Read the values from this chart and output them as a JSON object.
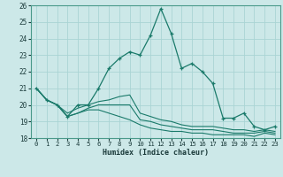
{
  "xlabel": "Humidex (Indice chaleur)",
  "bg_color": "#cce8e8",
  "grid_color": "#aad4d4",
  "line_color": "#1a7a6a",
  "xlim": [
    -0.5,
    23.5
  ],
  "ylim": [
    18,
    26
  ],
  "xticks": [
    0,
    1,
    2,
    3,
    4,
    5,
    6,
    7,
    8,
    9,
    10,
    11,
    12,
    13,
    14,
    15,
    16,
    17,
    18,
    19,
    20,
    21,
    22,
    23
  ],
  "yticks": [
    18,
    19,
    20,
    21,
    22,
    23,
    24,
    25,
    26
  ],
  "series": [
    {
      "x": [
        0,
        1,
        2,
        3,
        4,
        5,
        6,
        7,
        8,
        9,
        10,
        11,
        12,
        13,
        14,
        15,
        16,
        17,
        18,
        19,
        20,
        21,
        22,
        23
      ],
      "y": [
        21.0,
        20.3,
        20.0,
        19.3,
        20.0,
        20.0,
        21.0,
        22.2,
        22.8,
        23.2,
        23.0,
        24.2,
        25.8,
        24.3,
        22.2,
        22.5,
        22.0,
        21.3,
        19.2,
        19.2,
        19.5,
        18.7,
        18.5,
        18.7
      ],
      "marker": "+"
    },
    {
      "x": [
        0,
        1,
        2,
        3,
        4,
        5,
        6,
        7,
        8,
        9,
        10,
        11,
        12,
        13,
        14,
        15,
        16,
        17,
        18,
        19,
        20,
        21,
        22,
        23
      ],
      "y": [
        21.0,
        20.3,
        20.0,
        19.5,
        19.8,
        20.0,
        20.2,
        20.3,
        20.5,
        20.6,
        19.5,
        19.3,
        19.1,
        19.0,
        18.8,
        18.7,
        18.7,
        18.7,
        18.6,
        18.5,
        18.5,
        18.4,
        18.5,
        18.4
      ],
      "marker": null
    },
    {
      "x": [
        0,
        1,
        2,
        3,
        4,
        5,
        6,
        7,
        8,
        9,
        10,
        11,
        12,
        13,
        14,
        15,
        16,
        17,
        18,
        19,
        20,
        21,
        22,
        23
      ],
      "y": [
        21.0,
        20.3,
        20.0,
        19.3,
        19.5,
        19.8,
        20.0,
        20.0,
        20.0,
        20.0,
        19.1,
        19.0,
        18.8,
        18.7,
        18.6,
        18.5,
        18.5,
        18.5,
        18.4,
        18.3,
        18.3,
        18.3,
        18.4,
        18.3
      ],
      "marker": null
    },
    {
      "x": [
        0,
        1,
        2,
        3,
        4,
        5,
        6,
        7,
        8,
        9,
        10,
        11,
        12,
        13,
        14,
        15,
        16,
        17,
        18,
        19,
        20,
        21,
        22,
        23
      ],
      "y": [
        21.0,
        20.3,
        20.0,
        19.3,
        19.5,
        19.7,
        19.7,
        19.5,
        19.3,
        19.1,
        18.8,
        18.6,
        18.5,
        18.4,
        18.4,
        18.3,
        18.3,
        18.2,
        18.2,
        18.2,
        18.2,
        18.1,
        18.3,
        18.2
      ],
      "marker": null
    }
  ]
}
